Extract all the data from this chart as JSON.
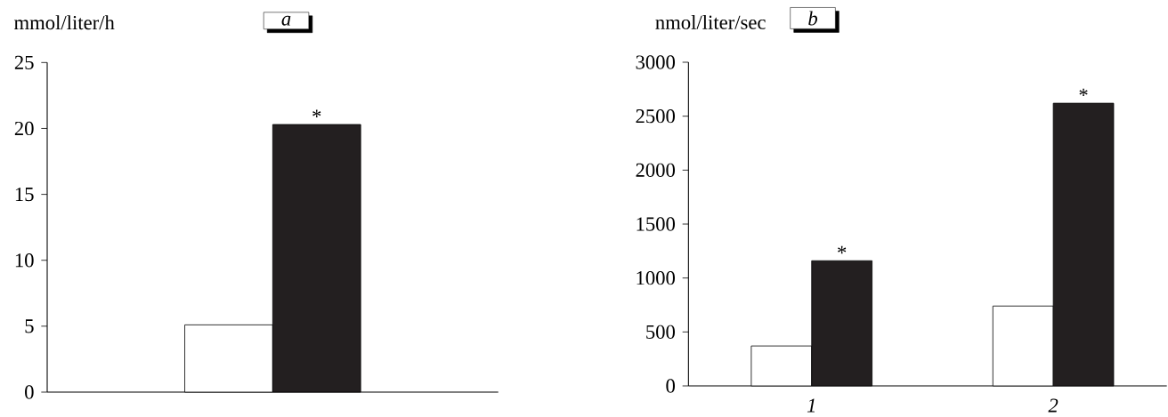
{
  "chart_data": [
    {
      "type": "bar",
      "title": "a",
      "ylabel": "mmol/liter/h",
      "categories": [
        null
      ],
      "series": [
        {
          "color": "#ffffff",
          "values": [
            5.1
          ]
        },
        {
          "color": "#231f20",
          "values": [
            20.3
          ]
        }
      ],
      "ylim": [
        0,
        25
      ],
      "yticks": [
        0,
        5,
        10,
        15,
        20,
        25
      ],
      "annotations": [
        {
          "text": "*",
          "y": 20.3
        }
      ]
    },
    {
      "type": "bar",
      "title": "b",
      "ylabel": "nmol/liter/sec",
      "categories": [
        "1",
        "2"
      ],
      "series": [
        {
          "color": "#ffffff",
          "values": [
            370,
            740
          ]
        },
        {
          "color": "#231f20",
          "values": [
            1160,
            2620
          ]
        }
      ],
      "ylim": [
        0,
        3000
      ],
      "yticks": [
        0,
        500,
        1000,
        1500,
        2000,
        2500,
        3000
      ],
      "annotations": [
        {
          "text": "*",
          "x": "1",
          "y": 1160
        },
        {
          "text": "*",
          "x": "2",
          "y": 2620
        }
      ]
    }
  ]
}
